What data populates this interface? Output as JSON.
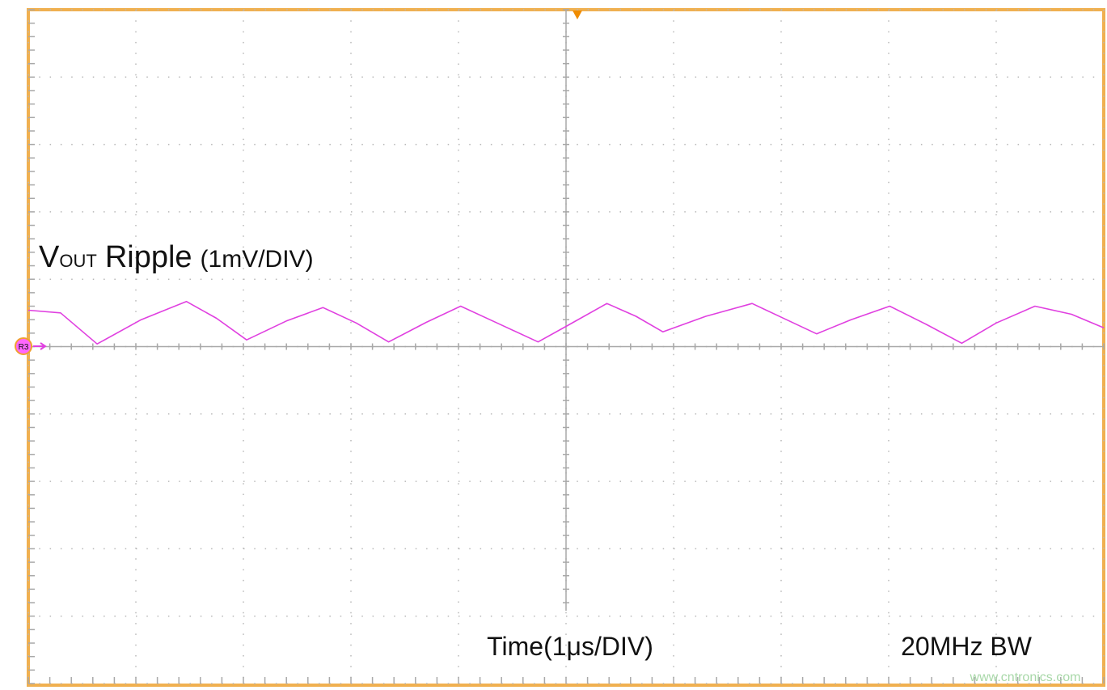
{
  "chart_data": {
    "type": "line",
    "title": {
      "main": "V",
      "sub": "OUT",
      "name": "Ripple",
      "scale": "(1mV/DIV)"
    },
    "x_label": "Time(1μs/DIV)",
    "annotation": "20MHz BW",
    "reference_marker": "R3",
    "watermark": "www.cntronics.com",
    "xlim": [
      -5,
      5
    ],
    "ylim": [
      -5,
      5
    ],
    "xticks": [
      -5,
      -4,
      -3,
      -2,
      -1,
      0,
      1,
      2,
      3,
      4,
      5
    ],
    "yticks": [
      -5,
      -4,
      -3,
      -2,
      -1,
      0,
      1,
      2,
      3,
      4,
      5
    ],
    "grid": true,
    "x": [
      -5,
      -4.7,
      -4.36,
      -3.95,
      -3.53,
      -3.25,
      -2.97,
      -2.6,
      -2.26,
      -1.95,
      -1.65,
      -1.3,
      -0.98,
      -0.6,
      -0.26,
      0,
      0.38,
      0.65,
      0.9,
      1.3,
      1.73,
      2.05,
      2.33,
      2.65,
      3.01,
      3.35,
      3.68,
      4.0,
      4.36,
      4.7,
      5
    ],
    "series": [
      {
        "color": "#e040e0",
        "values": [
          0.54,
          0.5,
          0.04,
          0.4,
          0.67,
          0.42,
          0.1,
          0.38,
          0.58,
          0.35,
          0.07,
          0.36,
          0.6,
          0.32,
          0.07,
          0.3,
          0.64,
          0.45,
          0.22,
          0.45,
          0.64,
          0.4,
          0.19,
          0.4,
          0.6,
          0.33,
          0.05,
          0.35,
          0.6,
          0.48,
          0.28
        ]
      }
    ]
  }
}
